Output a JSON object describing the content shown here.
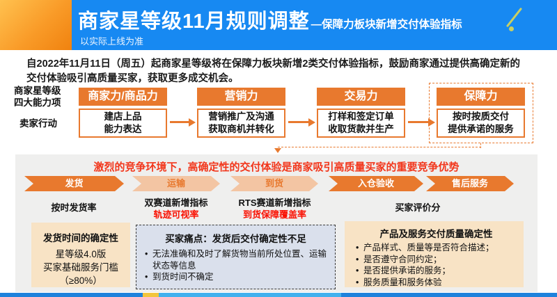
{
  "header": {
    "title": "商家星等级11月规则调整",
    "subtitle": "—保障力板块新增交付体验指标",
    "note": "以实际上线为准"
  },
  "intro": "自2022年11月11日（周五）起商家星等级将在保障力板块新增2类交付体验指标，鼓励商家通过提供高确定新的\n交付体验吸引高质量买家，获取更多成交机会。",
  "capability": {
    "row_label_top": "商家星等级\n四大能力项",
    "row_label_bottom": "卖家行动",
    "columns": [
      {
        "header": "商家力/商品力",
        "body": "建店上品\n能力表达"
      },
      {
        "header": "营销力",
        "body": "营销推广及沟通\n获取商机并转化"
      },
      {
        "header": "交易力",
        "body": "打样和签定订单\n收取货款并生产"
      },
      {
        "header": "保障力",
        "body": "按时按质交付\n提供承诺的服务"
      }
    ]
  },
  "panel": {
    "headline": "激烈的竞争环境下，高确定性的交付体验是商家吸引高质量买家的重要竞争优势",
    "stages": [
      {
        "label": "发货",
        "style": "solid"
      },
      {
        "label": "运输",
        "style": "light"
      },
      {
        "label": "到货",
        "style": "light"
      },
      {
        "label": "入仓验收",
        "style": "solid"
      },
      {
        "label": "售后服务",
        "style": "solid"
      }
    ],
    "metrics": [
      {
        "line1": "按时发货率",
        "line2": ""
      },
      {
        "line1": "双赛道新增指标",
        "line2": "轨迹可视率"
      },
      {
        "line1": "RTS赛道新增指标",
        "line2": "到货保障覆盖率"
      },
      {
        "line1": "买家评价分",
        "line2": ""
      }
    ],
    "boxes": {
      "left": {
        "title": "发货时间的确定性",
        "body": "星等级4.0版\n买家基础服务门槛\n（≥80%）"
      },
      "middle": {
        "title": "买家痛点：发货后交付确定性不足",
        "bullets": [
          "无法准确和及时了解货物当前所处位置、运输状态等信息",
          "到货时间不确定"
        ]
      },
      "right": {
        "title": "产品及服务交付质量确定性",
        "bullets": [
          "产品样式、质量等是否符合描述；",
          "是否遵守合同约定；",
          "是否提供承诺的服务；",
          "服务质量和服务体验"
        ]
      }
    }
  },
  "colors": {
    "header_blue": "#1789f2",
    "corner_orange_gradient": [
      "#ffc14f",
      "#f0820f"
    ],
    "accent_orange": "#e8792e",
    "light_orange": "#f3c5a3",
    "headline_red": "#f2361b",
    "metric_red": "#fa0f00",
    "tan_box": "#f8e3c5",
    "pain_box_bg": "#dae0ec",
    "panel_gray": "#efefee"
  }
}
